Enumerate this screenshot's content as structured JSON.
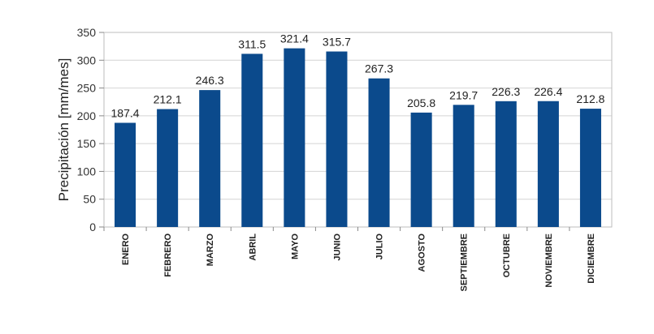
{
  "chart_data": {
    "type": "bar",
    "title": "",
    "xlabel": "",
    "ylabel": "Precipitación [mm/mes]",
    "ylim": [
      0,
      350
    ],
    "yticks": [
      0,
      50,
      100,
      150,
      200,
      250,
      300,
      350
    ],
    "grid": true,
    "legend": "none",
    "bar_color": "#0b4a8c",
    "categories": [
      "ENERO",
      "FEBRERO",
      "MARZO",
      "ABRIL",
      "MAYO",
      "JUNIO",
      "JULIO",
      "AGOSTO",
      "SEPTIEMBRE",
      "OCTUBRE",
      "NOVIEMBRE",
      "DICIEMBRE"
    ],
    "values": [
      187.4,
      212.1,
      246.3,
      311.5,
      321.4,
      315.7,
      267.3,
      205.8,
      219.7,
      226.3,
      226.4,
      212.8
    ],
    "value_labels": [
      "187.4",
      "212.1",
      "246.3",
      "311.5",
      "321.4",
      "315.7",
      "267.3",
      "205.8",
      "219.7",
      "226.3",
      "226.4",
      "212.8"
    ]
  }
}
